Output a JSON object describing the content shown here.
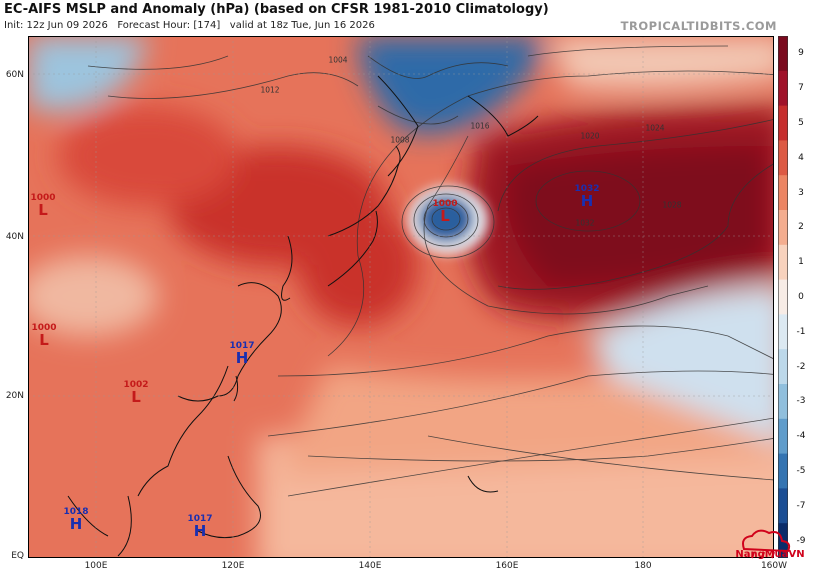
{
  "header": {
    "title": "EC-AIFS MSLP and Anomaly (hPa) (based on CFSR 1981-2010 Climatology)",
    "init": "Init: 12z Jun 09 2026",
    "forecast_hour": "Forecast Hour: [174]",
    "valid": "valid at 18z Tue, Jun 16 2026",
    "brand": "TROPICALTIDBITS.COM"
  },
  "map": {
    "lat_labels": [
      "60N",
      "40N",
      "20N",
      "EQ"
    ],
    "lon_labels": [
      "100E",
      "120E",
      "140E",
      "160E",
      "180",
      "160W"
    ],
    "pressure_centers": [
      {
        "type": "low",
        "letter": "L",
        "value": "1000"
      },
      {
        "type": "low",
        "letter": "L",
        "value": "1000"
      },
      {
        "type": "low",
        "letter": "L",
        "value": "1000"
      },
      {
        "type": "low",
        "letter": "L",
        "value": "1002"
      },
      {
        "type": "high",
        "letter": "H",
        "value": "1032"
      },
      {
        "type": "high",
        "letter": "H",
        "value": "1017"
      },
      {
        "type": "high",
        "letter": "H",
        "value": "1018"
      },
      {
        "type": "high",
        "letter": "H",
        "value": "1017"
      }
    ],
    "isobar_labels": [
      "1004",
      "1008",
      "1012",
      "1016",
      "1020",
      "1024",
      "1028",
      "1032"
    ]
  },
  "colorbar": {
    "labels": [
      "9",
      "7",
      "5",
      "4",
      "3",
      "2",
      "1",
      "0",
      "-1",
      "-2",
      "-3",
      "-4",
      "-5",
      "-7",
      "-9"
    ],
    "colors": [
      "#7a0a1e",
      "#a0122a",
      "#c62d2d",
      "#dd5a44",
      "#ec8563",
      "#f4ad8f",
      "#f8d2bd",
      "#f7ece6",
      "#dce9f2",
      "#bcd8ea",
      "#90bfdd",
      "#5f9ccb",
      "#3474b2",
      "#1b4e94",
      "#0a2c6a"
    ]
  },
  "watermark": "NangMuaVN"
}
